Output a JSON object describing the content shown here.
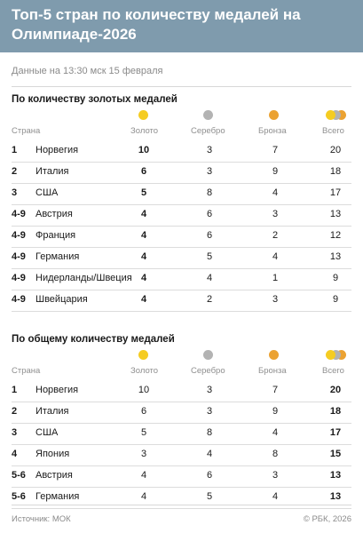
{
  "title": "Топ-5 стран по количеству медалей на Олимпиаде-2026",
  "timestamp": "Данные на 13:30 мск 15 февраля",
  "colors": {
    "header_bg": "#7f9bad",
    "gold": "#f5cc22",
    "silver": "#b3b3b3",
    "bronze": "#eba232"
  },
  "columns": {
    "country": "Страна",
    "gold": "Золото",
    "silver": "Серебро",
    "bronze": "Бронза",
    "total": "Всего"
  },
  "tables": [
    {
      "title": "По количеству золотых медалей",
      "rows": [
        {
          "rank": "1",
          "country": "Норвегия",
          "gold": "10",
          "silver": "3",
          "bronze": "7",
          "total": "20"
        },
        {
          "rank": "2",
          "country": "Италия",
          "gold": "6",
          "silver": "3",
          "bronze": "9",
          "total": "18"
        },
        {
          "rank": "3",
          "country": "США",
          "gold": "5",
          "silver": "8",
          "bronze": "4",
          "total": "17"
        },
        {
          "rank": "4-9",
          "country": "Австрия",
          "gold": "4",
          "silver": "6",
          "bronze": "3",
          "total": "13"
        },
        {
          "rank": "4-9",
          "country": "Франция",
          "gold": "4",
          "silver": "6",
          "bronze": "2",
          "total": "12"
        },
        {
          "rank": "4-9",
          "country": "Германия",
          "gold": "4",
          "silver": "5",
          "bronze": "4",
          "total": "13"
        },
        {
          "rank": "4-9",
          "country": "Нидерланды/Швеция",
          "gold": "4",
          "silver": "4",
          "bronze": "1",
          "total": "9"
        },
        {
          "rank": "4-9",
          "country": "Швейцария",
          "gold": "4",
          "silver": "2",
          "bronze": "3",
          "total": "9"
        }
      ]
    },
    {
      "title": "По общему количеству медалей",
      "rows": [
        {
          "rank": "1",
          "country": "Норвегия",
          "gold": "10",
          "silver": "3",
          "bronze": "7",
          "total": "20"
        },
        {
          "rank": "2",
          "country": "Италия",
          "gold": "6",
          "silver": "3",
          "bronze": "9",
          "total": "18"
        },
        {
          "rank": "3",
          "country": "США",
          "gold": "5",
          "silver": "8",
          "bronze": "4",
          "total": "17"
        },
        {
          "rank": "4",
          "country": "Япония",
          "gold": "3",
          "silver": "4",
          "bronze": "8",
          "total": "15"
        },
        {
          "rank": "5-6",
          "country": "Австрия",
          "gold": "4",
          "silver": "6",
          "bronze": "3",
          "total": "13"
        },
        {
          "rank": "5-6",
          "country": "Германия",
          "gold": "4",
          "silver": "5",
          "bronze": "4",
          "total": "13"
        }
      ]
    }
  ],
  "source": "Источник: МОК",
  "copyright": "© РБК, 2026"
}
